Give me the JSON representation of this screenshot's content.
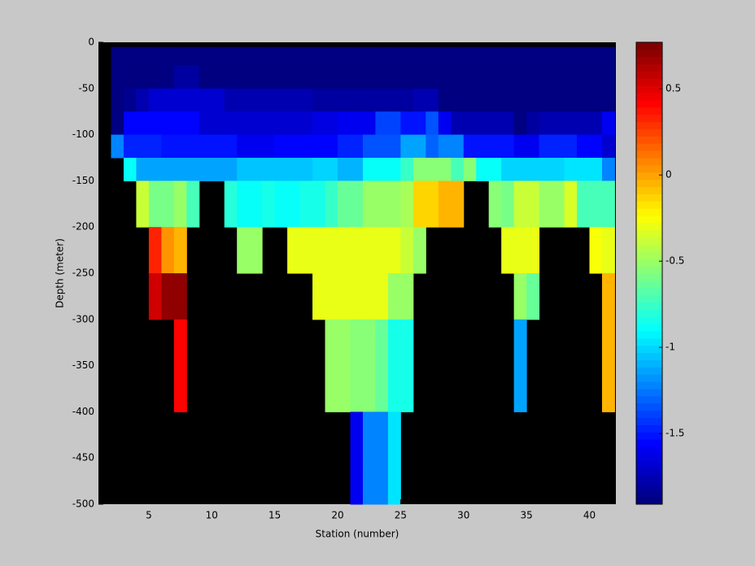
{
  "chart_data": {
    "type": "heatmap",
    "xlabel": "Station (number)",
    "ylabel": "Depth (meter)",
    "colormap": "jet",
    "x_edges": [
      2,
      3,
      4,
      5,
      6,
      7,
      8,
      9,
      10,
      11,
      12,
      13,
      14,
      15,
      16,
      17,
      18,
      19,
      20,
      21,
      22,
      23,
      24,
      25,
      26,
      27,
      28,
      29,
      30,
      31,
      32,
      33,
      34,
      35,
      36,
      37,
      38,
      39,
      40,
      41,
      42
    ],
    "y_edges": [
      -5,
      -25,
      -50,
      -75,
      -100,
      -125,
      -150,
      -175,
      -200,
      -225,
      -250,
      -275,
      -300,
      -325,
      -350,
      -375,
      -400,
      -425,
      -450,
      -475,
      -500
    ],
    "z": [
      [
        -1.9,
        -1.9,
        -1.9,
        -1.9,
        -1.9,
        -1.9,
        -1.9,
        -1.9,
        -1.9,
        -1.9,
        -1.9,
        -1.9,
        -1.9,
        -1.9,
        -1.9,
        -1.9,
        -1.9,
        -1.9,
        -1.9,
        -1.9,
        -1.9,
        -1.9,
        -1.9,
        -1.9,
        -1.9,
        -1.9,
        -1.9,
        -1.9,
        -1.9,
        -1.9,
        -1.9,
        -1.9,
        -1.9,
        -1.9,
        -1.9,
        -1.9,
        -1.9,
        -1.9,
        -1.9,
        -1.9
      ],
      [
        -1.9,
        -1.9,
        -1.9,
        -1.9,
        -1.9,
        -1.82,
        -1.82,
        -1.9,
        -1.9,
        -1.9,
        -1.9,
        -1.9,
        -1.9,
        -1.9,
        -1.9,
        -1.9,
        -1.9,
        -1.9,
        -1.9,
        -1.9,
        -1.9,
        -1.9,
        -1.9,
        -1.9,
        -1.9,
        -1.9,
        -1.9,
        -1.9,
        -1.9,
        -1.9,
        -1.9,
        -1.9,
        -1.9,
        -1.9,
        -1.9,
        -1.9,
        -1.9,
        -1.9,
        -1.9,
        -1.9
      ],
      [
        -1.9,
        -1.85,
        -1.75,
        -1.7,
        -1.7,
        -1.7,
        -1.7,
        -1.7,
        -1.7,
        -1.75,
        -1.75,
        -1.75,
        -1.75,
        -1.75,
        -1.75,
        -1.75,
        -1.8,
        -1.8,
        -1.8,
        -1.8,
        -1.8,
        -1.8,
        -1.8,
        -1.8,
        -1.75,
        -1.75,
        -1.9,
        -1.9,
        -1.9,
        -1.9,
        -1.9,
        -1.9,
        -1.9,
        -1.9,
        -1.9,
        -1.9,
        -1.9,
        -1.9,
        -1.9,
        -1.9
      ],
      [
        -1.9,
        -1.55,
        -1.55,
        -1.55,
        -1.55,
        -1.55,
        -1.55,
        -1.68,
        -1.68,
        -1.68,
        -1.68,
        -1.68,
        -1.68,
        -1.68,
        -1.68,
        -1.68,
        -1.62,
        -1.62,
        -1.6,
        -1.6,
        -1.6,
        -1.4,
        -1.4,
        -1.5,
        -1.5,
        -1.35,
        -1.6,
        -1.75,
        -1.75,
        -1.75,
        -1.75,
        -1.75,
        -1.9,
        -1.8,
        -1.75,
        -1.75,
        -1.75,
        -1.75,
        -1.75,
        -1.6
      ],
      [
        -1.2,
        -1.45,
        -1.45,
        -1.45,
        -1.5,
        -1.5,
        -1.5,
        -1.5,
        -1.5,
        -1.5,
        -1.6,
        -1.6,
        -1.6,
        -1.55,
        -1.55,
        -1.55,
        -1.55,
        -1.55,
        -1.45,
        -1.45,
        -1.35,
        -1.35,
        -1.35,
        -1.15,
        -1.15,
        -1.3,
        -1.2,
        -1.2,
        -1.5,
        -1.5,
        -1.5,
        -1.5,
        -1.6,
        -1.6,
        -1.45,
        -1.45,
        -1.45,
        -1.55,
        -1.55,
        -1.7
      ],
      [
        null,
        -0.9,
        -1.15,
        -1.15,
        -1.15,
        -1.15,
        -1.15,
        -1.15,
        -1.15,
        -1.15,
        -1.05,
        -1.05,
        -1.05,
        -1.05,
        -1.05,
        -1.05,
        -1.0,
        -1.0,
        -1.1,
        -1.1,
        -0.9,
        -0.9,
        -0.9,
        -0.75,
        -0.55,
        -0.55,
        -0.55,
        -0.7,
        -0.55,
        -0.9,
        -0.9,
        -1.0,
        -1.0,
        -1.0,
        -1.0,
        -1.0,
        -0.95,
        -0.95,
        -0.95,
        -1.2
      ],
      [
        null,
        null,
        -0.4,
        -0.6,
        -0.6,
        -0.5,
        -0.7,
        null,
        null,
        -0.8,
        -0.9,
        -0.9,
        -0.85,
        -0.9,
        -0.9,
        -0.85,
        -0.85,
        -0.75,
        -0.65,
        -0.65,
        -0.5,
        -0.5,
        -0.5,
        -0.45,
        -0.15,
        -0.15,
        -0.05,
        -0.05,
        null,
        null,
        -0.55,
        -0.6,
        -0.4,
        -0.4,
        -0.5,
        -0.5,
        -0.35,
        -0.7,
        -0.7,
        -0.7
      ],
      [
        null,
        null,
        -0.4,
        -0.6,
        -0.6,
        -0.5,
        -0.7,
        null,
        null,
        -0.8,
        -0.9,
        -0.9,
        -0.85,
        -0.9,
        -0.9,
        -0.85,
        -0.85,
        -0.75,
        -0.65,
        -0.65,
        -0.5,
        -0.5,
        -0.5,
        -0.45,
        -0.15,
        -0.15,
        -0.05,
        -0.05,
        null,
        null,
        -0.55,
        -0.6,
        -0.4,
        -0.4,
        -0.5,
        -0.5,
        -0.35,
        -0.7,
        -0.7,
        -0.7
      ],
      [
        null,
        null,
        null,
        0.35,
        0.05,
        -0.05,
        null,
        null,
        null,
        null,
        -0.5,
        -0.5,
        null,
        null,
        -0.3,
        -0.3,
        -0.3,
        -0.3,
        -0.3,
        -0.3,
        -0.3,
        -0.3,
        -0.3,
        -0.4,
        -0.5,
        null,
        null,
        null,
        null,
        null,
        null,
        -0.3,
        -0.3,
        -0.3,
        null,
        null,
        null,
        null,
        -0.25,
        -0.3
      ],
      [
        null,
        null,
        null,
        0.35,
        0.05,
        -0.05,
        null,
        null,
        null,
        null,
        -0.5,
        -0.5,
        null,
        null,
        -0.3,
        -0.3,
        -0.3,
        -0.3,
        -0.3,
        -0.3,
        -0.3,
        -0.3,
        -0.3,
        -0.4,
        -0.5,
        null,
        null,
        null,
        null,
        null,
        null,
        -0.3,
        -0.3,
        -0.3,
        null,
        null,
        null,
        null,
        -0.25,
        -0.3
      ],
      [
        null,
        null,
        null,
        0.55,
        0.72,
        0.72,
        null,
        null,
        null,
        null,
        null,
        null,
        null,
        null,
        null,
        null,
        -0.3,
        -0.3,
        -0.3,
        -0.3,
        -0.3,
        -0.3,
        -0.5,
        -0.5,
        null,
        null,
        null,
        null,
        null,
        null,
        null,
        null,
        -0.5,
        -0.65,
        null,
        null,
        null,
        null,
        null,
        -0.05
      ],
      [
        null,
        null,
        null,
        0.55,
        0.72,
        0.72,
        null,
        null,
        null,
        null,
        null,
        null,
        null,
        null,
        null,
        null,
        -0.3,
        -0.3,
        -0.3,
        -0.3,
        -0.3,
        -0.3,
        -0.5,
        -0.5,
        null,
        null,
        null,
        null,
        null,
        null,
        null,
        null,
        -0.5,
        -0.65,
        null,
        null,
        null,
        null,
        null,
        -0.05
      ],
      [
        null,
        null,
        null,
        null,
        null,
        0.4,
        null,
        null,
        null,
        null,
        null,
        null,
        null,
        null,
        null,
        null,
        null,
        -0.5,
        -0.5,
        -0.55,
        -0.55,
        -0.65,
        -0.85,
        -0.85,
        null,
        null,
        null,
        null,
        null,
        null,
        null,
        null,
        -1.15,
        null,
        null,
        null,
        null,
        null,
        null,
        -0.05
      ],
      [
        null,
        null,
        null,
        null,
        null,
        0.4,
        null,
        null,
        null,
        null,
        null,
        null,
        null,
        null,
        null,
        null,
        null,
        -0.5,
        -0.5,
        -0.55,
        -0.55,
        -0.65,
        -0.85,
        -0.85,
        null,
        null,
        null,
        null,
        null,
        null,
        null,
        null,
        -1.15,
        null,
        null,
        null,
        null,
        null,
        null,
        -0.05
      ],
      [
        null,
        null,
        null,
        null,
        null,
        0.4,
        null,
        null,
        null,
        null,
        null,
        null,
        null,
        null,
        null,
        null,
        null,
        -0.5,
        -0.5,
        -0.55,
        -0.55,
        -0.65,
        -0.85,
        -0.85,
        null,
        null,
        null,
        null,
        null,
        null,
        null,
        null,
        -1.15,
        null,
        null,
        null,
        null,
        null,
        null,
        -0.05
      ],
      [
        null,
        null,
        null,
        null,
        null,
        0.4,
        null,
        null,
        null,
        null,
        null,
        null,
        null,
        null,
        null,
        null,
        null,
        -0.5,
        -0.5,
        -0.55,
        -0.55,
        -0.65,
        -0.85,
        -0.85,
        null,
        null,
        null,
        null,
        null,
        null,
        null,
        null,
        -1.15,
        null,
        null,
        null,
        null,
        null,
        null,
        -0.05
      ],
      [
        null,
        null,
        null,
        null,
        null,
        null,
        null,
        null,
        null,
        null,
        null,
        null,
        null,
        null,
        null,
        null,
        null,
        null,
        null,
        -1.6,
        -1.2,
        -1.2,
        -0.95,
        null,
        null,
        null,
        null,
        null,
        null,
        null,
        null,
        null,
        null,
        null,
        null,
        null,
        null,
        null,
        null,
        null
      ],
      [
        null,
        null,
        null,
        null,
        null,
        null,
        null,
        null,
        null,
        null,
        null,
        null,
        null,
        null,
        null,
        null,
        null,
        null,
        null,
        -1.6,
        -1.2,
        -1.2,
        -0.95,
        null,
        null,
        null,
        null,
        null,
        null,
        null,
        null,
        null,
        null,
        null,
        null,
        null,
        null,
        null,
        null,
        null
      ],
      [
        null,
        null,
        null,
        null,
        null,
        null,
        null,
        null,
        null,
        null,
        null,
        null,
        null,
        null,
        null,
        null,
        null,
        null,
        null,
        -1.6,
        -1.2,
        -1.2,
        -0.95,
        null,
        null,
        null,
        null,
        null,
        null,
        null,
        null,
        null,
        null,
        null,
        null,
        null,
        null,
        null,
        null,
        null
      ],
      [
        null,
        null,
        null,
        null,
        null,
        null,
        null,
        null,
        null,
        null,
        null,
        null,
        null,
        null,
        null,
        null,
        null,
        null,
        null,
        -1.6,
        -1.2,
        -1.2,
        -0.95,
        null,
        null,
        null,
        null,
        null,
        null,
        null,
        null,
        null,
        null,
        null,
        null,
        null,
        null,
        null,
        null,
        null
      ]
    ],
    "xlim": [
      1,
      42.1
    ],
    "xticks": [
      5,
      10,
      15,
      20,
      25,
      30,
      35,
      40
    ],
    "ylim": [
      -500,
      0
    ],
    "yticks": [
      0,
      -50,
      -100,
      -150,
      -200,
      -250,
      -300,
      -350,
      -400,
      -450,
      -500
    ],
    "clim": [
      -1.91,
      0.77
    ],
    "cticks": [
      0.5,
      0,
      -0.5,
      -1,
      -1.5
    ]
  }
}
